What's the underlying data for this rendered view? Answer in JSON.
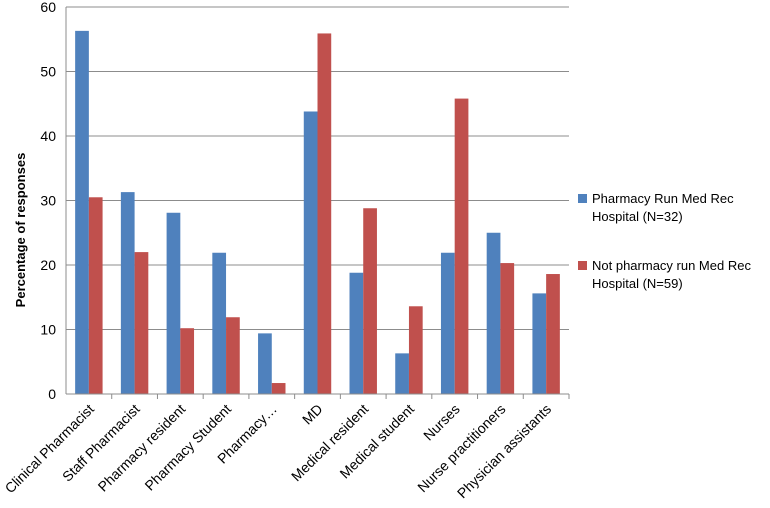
{
  "chart_data": {
    "type": "bar",
    "title": "",
    "xlabel": "",
    "ylabel": "Percentage of responses",
    "ylim": [
      0,
      60
    ],
    "yticks": [
      0,
      10,
      20,
      30,
      40,
      50,
      60
    ],
    "grid": true,
    "legend_position": "right",
    "categories": [
      "Clinical Pharmacist",
      "Staff Pharmacist",
      "Pharmacy resident",
      "Pharmacy Student",
      "Pharmacy…",
      "MD",
      "Medical resident",
      "Medical student",
      "Nurses",
      "Nurse practitioners",
      "Physician assistants"
    ],
    "series": [
      {
        "name": "Pharmacy Run Med Rec Hospital (N=32)",
        "color": "#4f81bd",
        "values": [
          56.3,
          31.3,
          28.1,
          21.9,
          9.4,
          43.8,
          18.8,
          6.3,
          21.9,
          25.0,
          15.6
        ]
      },
      {
        "name": "Not pharmacy run Med Rec Hospital (N=59)",
        "color": "#c0504d",
        "values": [
          30.5,
          22.0,
          10.2,
          11.9,
          1.7,
          55.9,
          28.8,
          13.6,
          45.8,
          20.3,
          18.6
        ]
      }
    ]
  }
}
